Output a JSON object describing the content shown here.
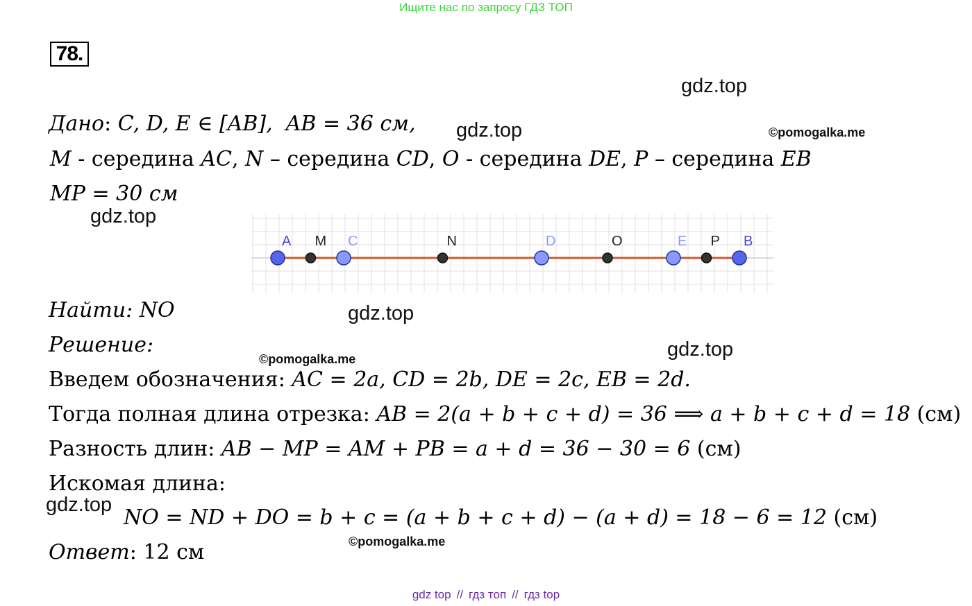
{
  "banner": {
    "text": "Ищите нас по запросу ГДЗ ТОП",
    "color": "#3bd33b"
  },
  "problem_number": "78.",
  "watermarks": {
    "gdz": [
      "gdz.top",
      "gdz.top",
      "gdz.top",
      "gdz.top",
      "gdz.top",
      "gdz.top"
    ],
    "pomogalka": [
      "©pomogalka.me",
      "©pomogalka.me",
      "©pomogalka.me"
    ]
  },
  "given": {
    "label": "Дано",
    "line1_a": "C, D, E ∈ [AB],",
    "line1_b": "AB = 36 см,",
    "line2": [
      {
        "m": "M",
        "t": " - середина "
      },
      {
        "m": "AC",
        "t": ", "
      },
      {
        "m": "N",
        "t": " – середина "
      },
      {
        "m": "CD",
        "t": ", "
      },
      {
        "m": "O",
        "t": " - середина "
      },
      {
        "m": "DE",
        "t": ", "
      },
      {
        "m": "P",
        "t": " – середина "
      },
      {
        "m": "EB",
        "t": ""
      }
    ],
    "line3": "MP = 30 см"
  },
  "diagram": {
    "segment_color": "#cc5a2e",
    "point_color_main": "#5566ee",
    "point_color_light": "#8899ff",
    "point_color_mid": "#333333",
    "label_color_main": "#4444dd",
    "points": [
      {
        "label": "A",
        "pos": 0,
        "kind": "main"
      },
      {
        "label": "M",
        "pos": 1,
        "kind": "mid"
      },
      {
        "label": "C",
        "pos": 2,
        "kind": "light"
      },
      {
        "label": "N",
        "pos": 5,
        "kind": "mid"
      },
      {
        "label": "D",
        "pos": 8,
        "kind": "light"
      },
      {
        "label": "O",
        "pos": 10,
        "kind": "mid"
      },
      {
        "label": "E",
        "pos": 12,
        "kind": "light"
      },
      {
        "label": "P",
        "pos": 13,
        "kind": "mid"
      },
      {
        "label": "B",
        "pos": 14,
        "kind": "main"
      }
    ]
  },
  "find": {
    "label": "Найти: ",
    "value": "NO"
  },
  "solution": {
    "label": "Решение:",
    "l1_text": "Введем обозначения: ",
    "l1_math": "AC = 2a, CD = 2b, DE = 2c, EB = 2d.",
    "l2_text": "Тогда полная длина отрезка: ",
    "l2_math": "AB = 2(a + b + c + d) = 36 ⟹ a + b + c + d = 18",
    "l2_unit": " (см)",
    "l3_text": "Разность длин: ",
    "l3_math": "AB − MP = AM + PB = a + d = 36 − 30 = 6",
    "l3_unit": " (см)",
    "l4_text": "Искомая длина:",
    "l5_math": "NO = ND + DO = b + c = (a + b + c + d) − (a + d) = 18 − 6 = 12",
    "l5_unit": " (см)"
  },
  "answer": {
    "label": "Ответ",
    "value": ": 12 см"
  },
  "footer": {
    "links": [
      "gdz top",
      "гдз топ",
      "гдз top"
    ],
    "separator": "//",
    "color": "#6b2aa6"
  }
}
